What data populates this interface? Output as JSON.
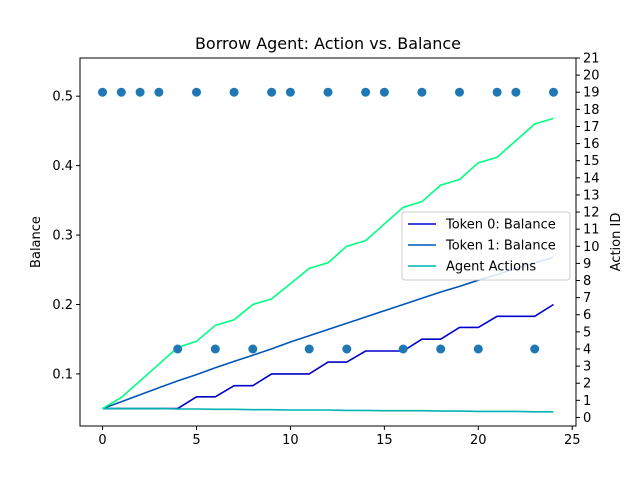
{
  "chart_data": {
    "type": "line",
    "title": "Borrow Agent: Action vs. Balance",
    "xlabel": "",
    "ylabel": "Balance",
    "y2label": "Action ID",
    "xlim": [
      -1.2,
      25.2
    ],
    "ylim": [
      0.025,
      0.555
    ],
    "y2lim": [
      -0.5,
      21
    ],
    "xticks": [
      0,
      5,
      10,
      15,
      20,
      25
    ],
    "yticks": [
      0.1,
      0.2,
      0.3,
      0.4,
      0.5
    ],
    "y2ticks": [
      0,
      1,
      2,
      3,
      4,
      5,
      6,
      7,
      8,
      9,
      10,
      11,
      12,
      13,
      14,
      15,
      16,
      17,
      18,
      19,
      20,
      21
    ],
    "grid": false,
    "legend_position": "center-right",
    "x": [
      0,
      1,
      2,
      3,
      4,
      5,
      6,
      7,
      8,
      9,
      10,
      11,
      12,
      13,
      14,
      15,
      16,
      17,
      18,
      19,
      20,
      21,
      22,
      23,
      24
    ],
    "series": [
      {
        "name": "Token 0: Balance",
        "axis": "left",
        "color": "#0000cc",
        "values": [
          0.05,
          0.05,
          0.05,
          0.05,
          0.05,
          0.067,
          0.067,
          0.083,
          0.083,
          0.1,
          0.1,
          0.1,
          0.117,
          0.117,
          0.133,
          0.133,
          0.133,
          0.15,
          0.15,
          0.167,
          0.167,
          0.183,
          0.183,
          0.183,
          0.2
        ]
      },
      {
        "name": "Token 1: Balance",
        "axis": "left",
        "color": "#0055bb",
        "values": [
          0.05,
          0.06,
          0.07,
          0.08,
          0.09,
          0.099,
          0.109,
          0.118,
          0.127,
          0.136,
          0.146,
          0.155,
          0.164,
          0.173,
          0.182,
          0.191,
          0.2,
          0.209,
          0.218,
          0.226,
          0.235,
          0.243,
          0.252,
          0.26,
          0.268
        ]
      },
      {
        "name": "Agent Actions",
        "axis": "left",
        "color": "#00b3b3",
        "values": [
          0.05,
          0.05,
          0.05,
          0.05,
          0.0495,
          0.0495,
          0.049,
          0.049,
          0.0485,
          0.0485,
          0.048,
          0.048,
          0.048,
          0.0475,
          0.0475,
          0.047,
          0.047,
          0.047,
          0.0465,
          0.0465,
          0.046,
          0.046,
          0.046,
          0.0455,
          0.0455
        ]
      },
      {
        "name": "",
        "axis": "left",
        "color": "#00ff80",
        "values": [
          0.05,
          0.066,
          0.09,
          0.114,
          0.138,
          0.147,
          0.17,
          0.178,
          0.2,
          0.208,
          0.23,
          0.252,
          0.26,
          0.284,
          0.292,
          0.316,
          0.34,
          0.348,
          0.372,
          0.38,
          0.404,
          0.412,
          0.436,
          0.46,
          0.468
        ]
      }
    ],
    "scatter": {
      "name": "",
      "axis": "right",
      "color": "#1f77b4",
      "x": [
        0,
        1,
        2,
        3,
        4,
        5,
        6,
        7,
        8,
        9,
        10,
        11,
        12,
        13,
        14,
        15,
        16,
        17,
        18,
        19,
        20,
        21,
        22,
        23,
        24
      ],
      "y": [
        19,
        19,
        19,
        19,
        4,
        19,
        4,
        19,
        4,
        19,
        19,
        4,
        19,
        4,
        19,
        19,
        4,
        19,
        4,
        19,
        4,
        19,
        19,
        4,
        19
      ]
    }
  }
}
